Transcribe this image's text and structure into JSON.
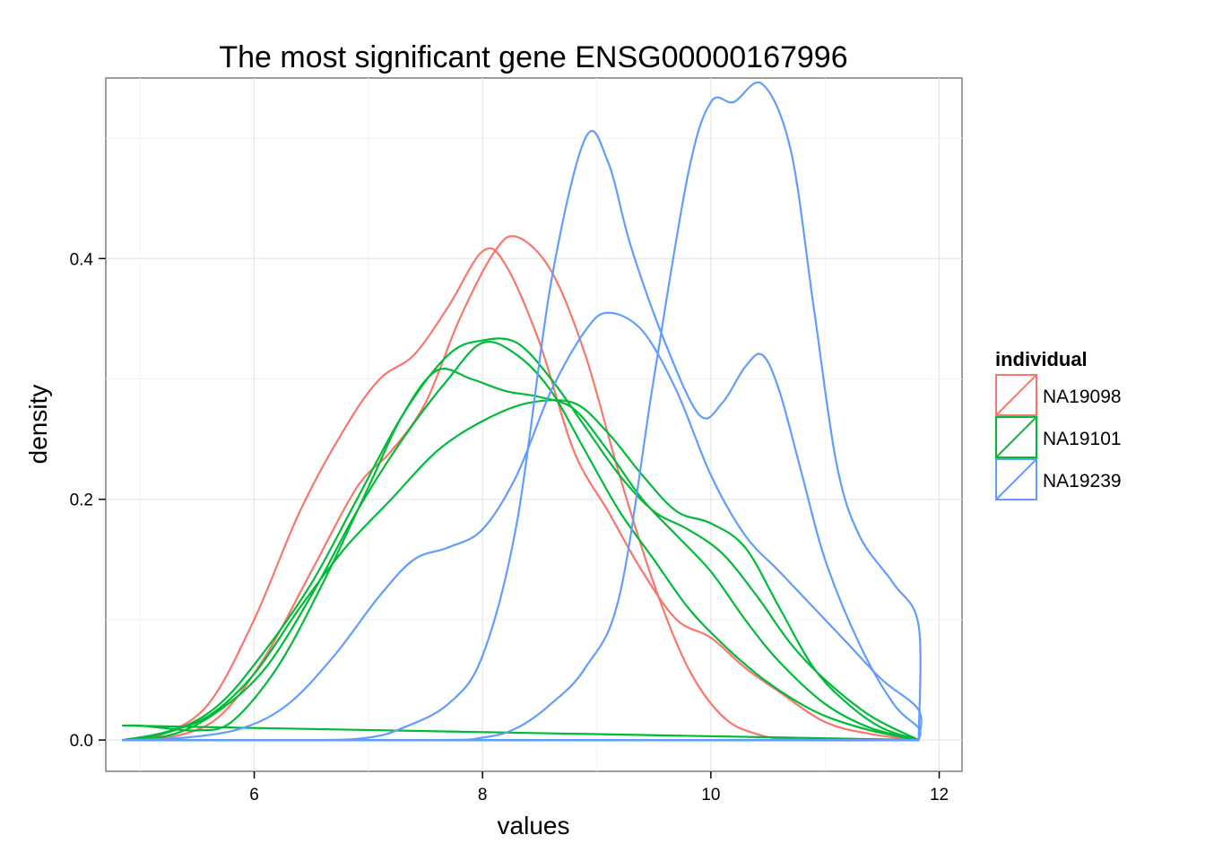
{
  "chart_data": {
    "type": "line",
    "title": "The most significant gene ENSG00000167996",
    "xlabel": "values",
    "ylabel": "density",
    "xlim": [
      4.7,
      12.2
    ],
    "ylim": [
      -0.026,
      0.55
    ],
    "x_ticks": [
      6,
      8,
      10,
      12
    ],
    "y_ticks": [
      0.0,
      0.2,
      0.4
    ],
    "y_tick_labels": [
      "0.0",
      "0.2",
      "0.4"
    ],
    "x_tick_labels": [
      "6",
      "8",
      "10",
      "12"
    ],
    "grid": true,
    "legend": {
      "title": "individual",
      "placement": "right",
      "entries": [
        {
          "name": "NA19098",
          "color": "#F8766D"
        },
        {
          "name": "NA19101",
          "color": "#00BA38"
        },
        {
          "name": "NA19239",
          "color": "#619CFF"
        }
      ]
    },
    "series": [
      {
        "group": "NA19098",
        "color": "#F8766D",
        "points": [
          [
            4.85,
            0
          ],
          [
            5.2,
            0.005
          ],
          [
            5.6,
            0.03
          ],
          [
            6.0,
            0.1
          ],
          [
            6.4,
            0.19
          ],
          [
            6.8,
            0.26
          ],
          [
            7.1,
            0.3
          ],
          [
            7.4,
            0.32
          ],
          [
            7.7,
            0.36
          ],
          [
            8.0,
            0.406
          ],
          [
            8.2,
            0.395
          ],
          [
            8.5,
            0.33
          ],
          [
            8.8,
            0.24
          ],
          [
            9.1,
            0.19
          ],
          [
            9.4,
            0.14
          ],
          [
            9.7,
            0.1
          ],
          [
            10.0,
            0.085
          ],
          [
            10.3,
            0.06
          ],
          [
            10.6,
            0.04
          ],
          [
            11.0,
            0.015
          ],
          [
            11.4,
            0.005
          ],
          [
            11.82,
            0
          ]
        ]
      },
      {
        "group": "NA19098",
        "color": "#F8766D",
        "points": [
          [
            4.85,
            0
          ],
          [
            5.3,
            0.003
          ],
          [
            5.7,
            0.02
          ],
          [
            6.1,
            0.07
          ],
          [
            6.5,
            0.14
          ],
          [
            6.9,
            0.21
          ],
          [
            7.2,
            0.24
          ],
          [
            7.5,
            0.28
          ],
          [
            7.8,
            0.35
          ],
          [
            8.1,
            0.405
          ],
          [
            8.3,
            0.418
          ],
          [
            8.6,
            0.39
          ],
          [
            8.9,
            0.32
          ],
          [
            9.2,
            0.22
          ],
          [
            9.5,
            0.13
          ],
          [
            9.8,
            0.06
          ],
          [
            10.1,
            0.02
          ],
          [
            10.4,
            0.005
          ],
          [
            10.8,
            0
          ],
          [
            11.82,
            0
          ]
        ]
      },
      {
        "group": "NA19101",
        "color": "#00BA38",
        "points": [
          [
            4.85,
            0.012
          ],
          [
            5.0,
            0.012
          ],
          [
            5.2,
            0.01
          ],
          [
            5.5,
            0.008
          ],
          [
            5.8,
            0.015
          ],
          [
            6.2,
            0.06
          ],
          [
            6.6,
            0.13
          ],
          [
            7.0,
            0.21
          ],
          [
            7.3,
            0.27
          ],
          [
            7.6,
            0.307
          ],
          [
            7.9,
            0.3
          ],
          [
            8.2,
            0.29
          ],
          [
            8.5,
            0.285
          ],
          [
            8.8,
            0.275
          ],
          [
            9.1,
            0.24
          ],
          [
            9.4,
            0.2
          ],
          [
            9.7,
            0.17
          ],
          [
            10.0,
            0.14
          ],
          [
            10.3,
            0.1
          ],
          [
            10.6,
            0.065
          ],
          [
            11.0,
            0.03
          ],
          [
            11.4,
            0.01
          ],
          [
            11.82,
            0
          ]
        ]
      },
      {
        "group": "NA19101",
        "color": "#00BA38",
        "points": [
          [
            4.85,
            0
          ],
          [
            5.3,
            0.008
          ],
          [
            5.7,
            0.03
          ],
          [
            6.1,
            0.075
          ],
          [
            6.5,
            0.13
          ],
          [
            6.9,
            0.2
          ],
          [
            7.3,
            0.27
          ],
          [
            7.7,
            0.32
          ],
          [
            8.0,
            0.332
          ],
          [
            8.3,
            0.33
          ],
          [
            8.6,
            0.3
          ],
          [
            8.9,
            0.26
          ],
          [
            9.2,
            0.22
          ],
          [
            9.5,
            0.19
          ],
          [
            9.8,
            0.175
          ],
          [
            10.1,
            0.155
          ],
          [
            10.4,
            0.12
          ],
          [
            10.7,
            0.08
          ],
          [
            11.0,
            0.05
          ],
          [
            11.4,
            0.02
          ],
          [
            11.82,
            0
          ]
        ]
      },
      {
        "group": "NA19101",
        "color": "#00BA38",
        "points": [
          [
            4.85,
            0
          ],
          [
            5.2,
            0.006
          ],
          [
            5.6,
            0.02
          ],
          [
            6.0,
            0.055
          ],
          [
            6.4,
            0.11
          ],
          [
            6.8,
            0.16
          ],
          [
            7.2,
            0.2
          ],
          [
            7.6,
            0.24
          ],
          [
            8.0,
            0.265
          ],
          [
            8.4,
            0.28
          ],
          [
            8.8,
            0.28
          ],
          [
            9.1,
            0.255
          ],
          [
            9.4,
            0.22
          ],
          [
            9.7,
            0.19
          ],
          [
            10.0,
            0.18
          ],
          [
            10.3,
            0.16
          ],
          [
            10.6,
            0.11
          ],
          [
            10.9,
            0.06
          ],
          [
            11.2,
            0.03
          ],
          [
            11.5,
            0.01
          ],
          [
            11.82,
            0
          ]
        ]
      },
      {
        "group": "NA19101",
        "color": "#00BA38",
        "points": [
          [
            4.85,
            0
          ],
          [
            5.3,
            0.005
          ],
          [
            5.7,
            0.025
          ],
          [
            6.1,
            0.06
          ],
          [
            6.5,
            0.12
          ],
          [
            6.9,
            0.19
          ],
          [
            7.3,
            0.25
          ],
          [
            7.7,
            0.3
          ],
          [
            8.0,
            0.33
          ],
          [
            8.3,
            0.32
          ],
          [
            8.6,
            0.29
          ],
          [
            8.9,
            0.24
          ],
          [
            9.2,
            0.19
          ],
          [
            9.5,
            0.15
          ],
          [
            9.8,
            0.11
          ],
          [
            10.1,
            0.08
          ],
          [
            10.4,
            0.055
          ],
          [
            10.7,
            0.035
          ],
          [
            11.0,
            0.02
          ],
          [
            11.4,
            0.008
          ],
          [
            11.82,
            0
          ]
        ]
      },
      {
        "group": "NA19239",
        "color": "#619CFF",
        "points": [
          [
            4.85,
            0
          ],
          [
            5.4,
            0.002
          ],
          [
            5.9,
            0.01
          ],
          [
            6.3,
            0.03
          ],
          [
            6.7,
            0.07
          ],
          [
            7.1,
            0.12
          ],
          [
            7.4,
            0.15
          ],
          [
            7.7,
            0.16
          ],
          [
            8.0,
            0.175
          ],
          [
            8.3,
            0.22
          ],
          [
            8.6,
            0.29
          ],
          [
            8.9,
            0.34
          ],
          [
            9.1,
            0.355
          ],
          [
            9.4,
            0.34
          ],
          [
            9.7,
            0.29
          ],
          [
            10.0,
            0.22
          ],
          [
            10.3,
            0.17
          ],
          [
            10.6,
            0.14
          ],
          [
            10.9,
            0.11
          ],
          [
            11.2,
            0.08
          ],
          [
            11.5,
            0.05
          ],
          [
            11.82,
            0.025
          ],
          [
            11.82,
            0
          ]
        ]
      },
      {
        "group": "NA19239",
        "color": "#619CFF",
        "points": [
          [
            4.85,
            0
          ],
          [
            6.5,
            0
          ],
          [
            7.0,
            0.002
          ],
          [
            7.3,
            0.01
          ],
          [
            7.7,
            0.03
          ],
          [
            8.0,
            0.07
          ],
          [
            8.3,
            0.18
          ],
          [
            8.6,
            0.38
          ],
          [
            8.9,
            0.5
          ],
          [
            9.1,
            0.48
          ],
          [
            9.3,
            0.41
          ],
          [
            9.6,
            0.33
          ],
          [
            9.9,
            0.27
          ],
          [
            10.1,
            0.28
          ],
          [
            10.3,
            0.31
          ],
          [
            10.45,
            0.32
          ],
          [
            10.6,
            0.29
          ],
          [
            10.8,
            0.22
          ],
          [
            11.0,
            0.15
          ],
          [
            11.3,
            0.08
          ],
          [
            11.6,
            0.03
          ],
          [
            11.82,
            0.01
          ],
          [
            11.82,
            0
          ]
        ]
      },
      {
        "group": "NA19239",
        "color": "#619CFF",
        "points": [
          [
            4.85,
            0
          ],
          [
            7.5,
            0
          ],
          [
            8.0,
            0.002
          ],
          [
            8.3,
            0.01
          ],
          [
            8.6,
            0.03
          ],
          [
            8.9,
            0.06
          ],
          [
            9.2,
            0.12
          ],
          [
            9.5,
            0.3
          ],
          [
            9.8,
            0.47
          ],
          [
            10.0,
            0.53
          ],
          [
            10.2,
            0.53
          ],
          [
            10.45,
            0.545
          ],
          [
            10.7,
            0.49
          ],
          [
            10.9,
            0.36
          ],
          [
            11.1,
            0.23
          ],
          [
            11.3,
            0.17
          ],
          [
            11.6,
            0.13
          ],
          [
            11.82,
            0.095
          ],
          [
            11.82,
            0
          ]
        ]
      }
    ]
  }
}
